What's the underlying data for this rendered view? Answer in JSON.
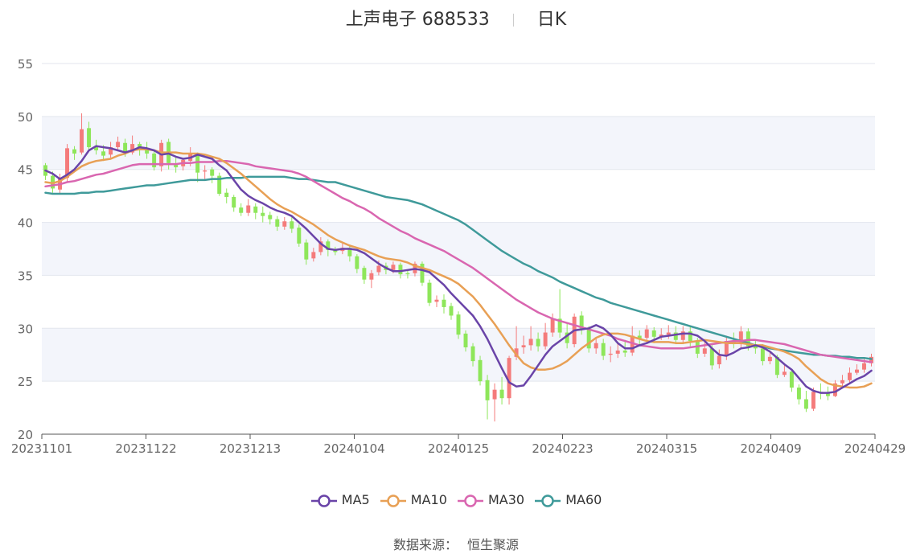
{
  "title": {
    "name": "上声电子",
    "code": "688533",
    "period": "日K"
  },
  "source": {
    "label": "数据来源：",
    "value": "恒生聚源"
  },
  "chart_data": {
    "type": "candlestick",
    "ylim": [
      20,
      55
    ],
    "yticks": [
      20,
      25,
      30,
      35,
      40,
      45,
      50,
      55
    ],
    "xlabels": [
      "20231101",
      "20231122",
      "20231213",
      "20240104",
      "20240125",
      "20240223",
      "20240315",
      "20240409",
      "20240429"
    ],
    "grid": true,
    "legend_position": "bottom",
    "colors": {
      "up": "#f47b7b",
      "down": "#8ee65a",
      "MA5": "#6a44a8",
      "MA10": "#e8a055",
      "MA30": "#d966b0",
      "MA60": "#3f9a9a"
    },
    "candles": [
      [
        45.4,
        44.4,
        45.6,
        44.0
      ],
      [
        44.4,
        43.2,
        44.8,
        42.8
      ],
      [
        43.1,
        44.2,
        44.6,
        42.7
      ],
      [
        44.2,
        47.0,
        47.4,
        43.8
      ],
      [
        46.9,
        46.5,
        47.2,
        45.9
      ],
      [
        46.6,
        48.8,
        50.3,
        46.4
      ],
      [
        48.9,
        47.1,
        49.5,
        46.8
      ],
      [
        47.2,
        46.8,
        47.8,
        46.4
      ],
      [
        46.7,
        46.3,
        47.3,
        45.8
      ],
      [
        46.4,
        47.1,
        47.6,
        46.1
      ],
      [
        47.1,
        47.6,
        48.1,
        46.7
      ],
      [
        47.5,
        46.6,
        47.9,
        46.2
      ],
      [
        46.6,
        47.4,
        48.2,
        46.4
      ],
      [
        47.4,
        47.0,
        47.6,
        46.3
      ],
      [
        47.0,
        46.5,
        47.6,
        46.0
      ],
      [
        46.5,
        45.2,
        46.7,
        44.9
      ],
      [
        45.3,
        47.5,
        47.8,
        44.8
      ],
      [
        47.6,
        45.6,
        47.9,
        45.0
      ],
      [
        45.5,
        45.2,
        46.1,
        44.7
      ],
      [
        45.3,
        45.9,
        46.1,
        44.9
      ],
      [
        45.8,
        46.5,
        47.1,
        45.3
      ],
      [
        46.4,
        44.7,
        46.6,
        43.8
      ],
      [
        44.8,
        44.9,
        45.4,
        44.1
      ],
      [
        45.0,
        44.4,
        45.2,
        43.7
      ],
      [
        44.4,
        42.7,
        44.7,
        42.5
      ],
      [
        42.8,
        42.4,
        43.2,
        41.8
      ],
      [
        42.4,
        41.4,
        42.6,
        41.0
      ],
      [
        41.4,
        40.9,
        41.8,
        40.6
      ],
      [
        40.9,
        41.6,
        42.2,
        40.6
      ],
      [
        41.5,
        40.9,
        41.8,
        40.3
      ],
      [
        40.9,
        40.6,
        41.5,
        40.0
      ],
      [
        40.7,
        40.3,
        41.0,
        39.8
      ],
      [
        40.3,
        39.6,
        40.6,
        39.2
      ],
      [
        39.6,
        40.1,
        40.5,
        39.3
      ],
      [
        40.1,
        39.4,
        40.6,
        39.0
      ],
      [
        39.5,
        38.0,
        39.8,
        37.7
      ],
      [
        38.1,
        36.5,
        38.4,
        36.0
      ],
      [
        36.6,
        37.2,
        37.6,
        36.3
      ],
      [
        37.2,
        38.2,
        38.6,
        36.9
      ],
      [
        38.2,
        37.4,
        38.4,
        36.8
      ],
      [
        37.4,
        37.2,
        37.7,
        36.9
      ],
      [
        37.3,
        37.6,
        38.0,
        37.0
      ],
      [
        37.6,
        36.8,
        37.9,
        36.3
      ],
      [
        36.8,
        35.6,
        37.0,
        35.2
      ],
      [
        35.7,
        34.6,
        35.9,
        34.2
      ],
      [
        34.6,
        35.2,
        35.5,
        33.8
      ],
      [
        35.3,
        35.9,
        36.4,
        35.0
      ],
      [
        35.9,
        35.5,
        36.2,
        35.1
      ],
      [
        35.5,
        36.0,
        36.3,
        35.2
      ],
      [
        36.0,
        35.1,
        36.2,
        34.7
      ],
      [
        35.2,
        35.1,
        35.5,
        34.7
      ],
      [
        35.2,
        36.1,
        36.3,
        34.9
      ],
      [
        36.1,
        34.3,
        36.3,
        34.0
      ],
      [
        34.3,
        32.4,
        34.6,
        32.1
      ],
      [
        32.5,
        32.7,
        33.1,
        32.0
      ],
      [
        32.7,
        32.0,
        33.2,
        31.4
      ],
      [
        32.1,
        31.2,
        32.4,
        30.8
      ],
      [
        31.3,
        29.4,
        31.6,
        29.0
      ],
      [
        29.5,
        28.2,
        29.8,
        27.8
      ],
      [
        28.3,
        26.9,
        28.6,
        26.4
      ],
      [
        27.0,
        25.0,
        27.4,
        24.6
      ],
      [
        25.1,
        23.2,
        25.6,
        21.4
      ],
      [
        23.3,
        24.2,
        24.8,
        21.2
      ],
      [
        24.2,
        23.4,
        25.4,
        22.8
      ],
      [
        23.4,
        27.2,
        27.4,
        22.8
      ],
      [
        27.3,
        28.1,
        30.2,
        27.0
      ],
      [
        28.2,
        28.4,
        29.3,
        27.6
      ],
      [
        28.4,
        29.0,
        30.2,
        27.9
      ],
      [
        29.0,
        28.3,
        29.6,
        27.8
      ],
      [
        28.3,
        29.6,
        30.5,
        28.0
      ],
      [
        29.6,
        30.9,
        31.4,
        29.2
      ],
      [
        30.9,
        29.6,
        33.7,
        29.1
      ],
      [
        29.6,
        28.6,
        30.5,
        28.1
      ],
      [
        28.5,
        31.1,
        31.4,
        28.2
      ],
      [
        31.2,
        29.9,
        31.6,
        29.4
      ],
      [
        29.9,
        28.1,
        30.2,
        27.7
      ],
      [
        28.1,
        28.6,
        29.1,
        27.6
      ],
      [
        28.6,
        27.4,
        29.0,
        27.0
      ],
      [
        27.5,
        27.6,
        28.3,
        26.8
      ],
      [
        27.6,
        27.9,
        28.7,
        27.2
      ],
      [
        27.9,
        27.7,
        28.9,
        27.3
      ],
      [
        27.7,
        29.3,
        30.2,
        27.4
      ],
      [
        29.3,
        29.0,
        29.8,
        28.4
      ],
      [
        29.1,
        29.9,
        30.3,
        28.7
      ],
      [
        29.8,
        29.2,
        30.1,
        28.6
      ],
      [
        29.2,
        29.4,
        30.0,
        28.9
      ],
      [
        29.4,
        29.6,
        30.3,
        29.0
      ],
      [
        29.6,
        28.9,
        30.2,
        28.5
      ],
      [
        28.9,
        29.7,
        30.2,
        28.5
      ],
      [
        29.7,
        28.8,
        30.2,
        28.3
      ],
      [
        28.8,
        27.6,
        29.1,
        27.2
      ],
      [
        27.6,
        28.1,
        28.8,
        27.3
      ],
      [
        28.1,
        26.5,
        28.4,
        26.1
      ],
      [
        26.6,
        27.4,
        28.0,
        26.2
      ],
      [
        27.4,
        28.8,
        29.3,
        27.0
      ],
      [
        28.8,
        28.5,
        29.6,
        28.1
      ],
      [
        28.5,
        29.7,
        30.2,
        28.2
      ],
      [
        29.7,
        28.3,
        30.0,
        27.9
      ],
      [
        28.3,
        28.1,
        28.8,
        27.6
      ],
      [
        28.1,
        26.9,
        28.5,
        26.5
      ],
      [
        26.9,
        27.3,
        27.9,
        26.6
      ],
      [
        27.3,
        25.6,
        27.5,
        25.3
      ],
      [
        25.6,
        25.9,
        26.5,
        25.4
      ],
      [
        25.9,
        24.4,
        26.1,
        24.0
      ],
      [
        24.4,
        23.3,
        24.7,
        22.8
      ],
      [
        23.3,
        22.4,
        24.1,
        22.1
      ],
      [
        22.4,
        24.0,
        24.4,
        22.2
      ],
      [
        24.0,
        23.9,
        24.8,
        23.3
      ],
      [
        23.9,
        23.6,
        24.5,
        23.2
      ],
      [
        23.6,
        24.8,
        25.1,
        23.5
      ],
      [
        24.8,
        25.1,
        25.6,
        24.5
      ],
      [
        25.1,
        25.8,
        26.3,
        24.8
      ],
      [
        25.8,
        26.1,
        26.6,
        25.6
      ],
      [
        26.1,
        26.7,
        27.2,
        25.8
      ],
      [
        26.7,
        27.3,
        27.6,
        26.4
      ]
    ],
    "ma": {
      "MA5": {
        "start": 0,
        "values": [
          44.9,
          44.6,
          44.1,
          44.5,
          45.0,
          45.8,
          46.8,
          47.2,
          47.1,
          47.0,
          46.8,
          46.6,
          46.8,
          47.1,
          47.0,
          46.8,
          46.4,
          46.5,
          46.2,
          46.0,
          46.1,
          46.4,
          46.2,
          46.0,
          45.4,
          44.9,
          44.0,
          43.1,
          42.5,
          42.1,
          41.8,
          41.4,
          41.1,
          40.9,
          40.6,
          40.0,
          39.4,
          38.7,
          38.0,
          37.5,
          37.4,
          37.5,
          37.5,
          37.4,
          37.1,
          36.6,
          36.1,
          35.7,
          35.4,
          35.4,
          35.5,
          35.6,
          35.5,
          35.3,
          34.7,
          34.1,
          33.3,
          32.6,
          31.9,
          31.2,
          30.2,
          29.0,
          27.6,
          26.2,
          24.9,
          24.5,
          24.6,
          25.5,
          26.5,
          27.5,
          28.3,
          28.8,
          29.3,
          29.8,
          29.9,
          30.0,
          30.3,
          30.0,
          29.4,
          28.6,
          28.1,
          28.1,
          28.4,
          28.6,
          28.9,
          29.2,
          29.3,
          29.4,
          29.5,
          29.5,
          29.3,
          28.8,
          28.1,
          27.5,
          27.4,
          27.7,
          28.1,
          28.2,
          28.4,
          28.2,
          27.8,
          27.2,
          26.6,
          26.1,
          25.3,
          24.5,
          24.1,
          23.9,
          23.9,
          24.0,
          24.4,
          24.8,
          25.2,
          25.5,
          26.0
        ]
      },
      "MA10": {
        "start": 0,
        "values": [
          43.8,
          43.7,
          43.9,
          44.3,
          44.8,
          45.3,
          45.6,
          45.8,
          45.9,
          46.0,
          46.3,
          46.5,
          46.8,
          46.9,
          46.9,
          46.8,
          46.6,
          46.6,
          46.6,
          46.5,
          46.5,
          46.5,
          46.4,
          46.2,
          46.0,
          45.6,
          45.1,
          44.6,
          44.0,
          43.4,
          42.8,
          42.2,
          41.7,
          41.3,
          41.0,
          40.6,
          40.2,
          39.8,
          39.3,
          38.8,
          38.4,
          38.1,
          37.8,
          37.6,
          37.4,
          37.1,
          36.8,
          36.6,
          36.5,
          36.4,
          36.2,
          35.9,
          35.7,
          35.5,
          35.2,
          34.9,
          34.6,
          34.2,
          33.6,
          33.0,
          32.2,
          31.3,
          30.4,
          29.4,
          28.4,
          27.5,
          26.7,
          26.3,
          26.1,
          26.1,
          26.2,
          26.5,
          26.9,
          27.5,
          28.1,
          28.6,
          29.1,
          29.4,
          29.5,
          29.5,
          29.4,
          29.2,
          29.0,
          28.8,
          28.7,
          28.7,
          28.7,
          28.6,
          28.6,
          28.7,
          28.8,
          28.9,
          28.8,
          28.7,
          28.6,
          28.6,
          28.6,
          28.5,
          28.4,
          28.4,
          28.2,
          28.0,
          27.8,
          27.5,
          27.1,
          26.4,
          25.8,
          25.2,
          24.8,
          24.6,
          24.5,
          24.4,
          24.4,
          24.5,
          24.8
        ]
      },
      "MA30": {
        "start": 0,
        "values": [
          43.4,
          43.5,
          43.6,
          43.8,
          43.9,
          44.1,
          44.3,
          44.5,
          44.6,
          44.8,
          45.0,
          45.2,
          45.4,
          45.5,
          45.5,
          45.5,
          45.5,
          45.5,
          45.5,
          45.6,
          45.6,
          45.7,
          45.7,
          45.7,
          45.8,
          45.8,
          45.7,
          45.6,
          45.5,
          45.3,
          45.2,
          45.1,
          45.0,
          44.9,
          44.8,
          44.6,
          44.3,
          43.9,
          43.5,
          43.1,
          42.7,
          42.3,
          42.0,
          41.6,
          41.3,
          40.9,
          40.4,
          40.0,
          39.6,
          39.2,
          38.9,
          38.5,
          38.2,
          37.9,
          37.6,
          37.3,
          36.9,
          36.5,
          36.1,
          35.7,
          35.2,
          34.7,
          34.2,
          33.7,
          33.2,
          32.7,
          32.3,
          31.9,
          31.5,
          31.2,
          30.9,
          30.7,
          30.5,
          30.3,
          30.1,
          29.9,
          29.7,
          29.5,
          29.3,
          29.0,
          28.8,
          28.6,
          28.4,
          28.3,
          28.2,
          28.1,
          28.1,
          28.1,
          28.1,
          28.2,
          28.3,
          28.4,
          28.5,
          28.6,
          28.7,
          28.8,
          28.8,
          28.9,
          28.9,
          28.8,
          28.7,
          28.6,
          28.5,
          28.3,
          28.1,
          27.9,
          27.7,
          27.5,
          27.4,
          27.3,
          27.2,
          27.1,
          27.0,
          26.9,
          26.8
        ]
      },
      "MA60": {
        "start": 0,
        "values": [
          42.8,
          42.7,
          42.7,
          42.7,
          42.7,
          42.8,
          42.8,
          42.9,
          42.9,
          43.0,
          43.1,
          43.2,
          43.3,
          43.4,
          43.5,
          43.5,
          43.6,
          43.7,
          43.8,
          43.9,
          44.0,
          44.0,
          44.0,
          44.1,
          44.1,
          44.2,
          44.2,
          44.2,
          44.3,
          44.3,
          44.3,
          44.3,
          44.3,
          44.3,
          44.2,
          44.1,
          44.1,
          44.0,
          43.9,
          43.8,
          43.8,
          43.6,
          43.4,
          43.2,
          43.0,
          42.8,
          42.6,
          42.4,
          42.3,
          42.2,
          42.1,
          41.9,
          41.7,
          41.4,
          41.1,
          40.8,
          40.5,
          40.2,
          39.8,
          39.3,
          38.8,
          38.3,
          37.8,
          37.3,
          36.9,
          36.5,
          36.1,
          35.8,
          35.4,
          35.1,
          34.8,
          34.4,
          34.1,
          33.8,
          33.5,
          33.2,
          32.9,
          32.7,
          32.4,
          32.2,
          32.0,
          31.8,
          31.6,
          31.4,
          31.2,
          31.0,
          30.8,
          30.6,
          30.4,
          30.2,
          30.0,
          29.8,
          29.6,
          29.4,
          29.2,
          29.0,
          28.8,
          28.6,
          28.4,
          28.3,
          28.1,
          28.0,
          27.9,
          27.8,
          27.7,
          27.6,
          27.5,
          27.5,
          27.4,
          27.4,
          27.3,
          27.3,
          27.2,
          27.2,
          27.1
        ]
      }
    }
  },
  "legend": [
    {
      "name": "MA5",
      "color": "#6a44a8"
    },
    {
      "name": "MA10",
      "color": "#e8a055"
    },
    {
      "name": "MA30",
      "color": "#d966b0"
    },
    {
      "name": "MA60",
      "color": "#3f9a9a"
    }
  ]
}
